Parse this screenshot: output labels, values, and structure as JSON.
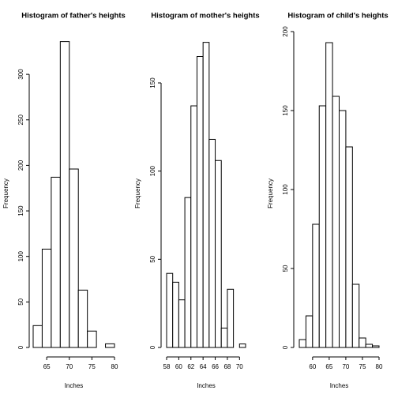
{
  "chart_data": [
    {
      "type": "histogram",
      "title": "Histogram of father's heights",
      "x_label": "Inches",
      "y_label": "Frequency",
      "bins": [
        62,
        64,
        66,
        68,
        70,
        72,
        74,
        76,
        78,
        80
      ],
      "values": [
        24,
        108,
        187,
        336,
        196,
        63,
        18,
        0,
        4
      ],
      "xlim": [
        62,
        80
      ],
      "xticks": [
        65,
        70,
        75,
        80
      ],
      "ylim": [
        0,
        340
      ],
      "yticks": [
        0,
        50,
        100,
        150,
        200,
        250,
        300
      ],
      "color": "#ffffff"
    },
    {
      "type": "histogram",
      "title": "Histogram of mother's heights",
      "x_label": "Inches",
      "y_label": "Frequency",
      "bins": [
        58,
        59,
        60,
        61,
        62,
        63,
        64,
        65,
        66,
        67,
        68,
        69,
        70,
        71
      ],
      "values": [
        42,
        37,
        27,
        85,
        137,
        165,
        173,
        118,
        106,
        11,
        33,
        0,
        2
      ],
      "xlim": [
        58,
        71
      ],
      "xticks": [
        58,
        60,
        62,
        64,
        66,
        68,
        70
      ],
      "ylim": [
        0,
        180
      ],
      "yticks": [
        0,
        50,
        100,
        150
      ],
      "color": "#ffffff"
    },
    {
      "type": "histogram",
      "title": "Histogram of child's heights",
      "x_label": "Inches",
      "y_label": "Frequency",
      "bins": [
        56,
        58,
        60,
        62,
        64,
        66,
        68,
        70,
        72,
        74,
        76,
        78,
        80
      ],
      "values": [
        5,
        20,
        78,
        153,
        193,
        159,
        150,
        127,
        40,
        6,
        2,
        1
      ],
      "xlim": [
        56,
        80
      ],
      "xticks": [
        60,
        65,
        70,
        75,
        80
      ],
      "ylim": [
        0,
        200
      ],
      "yticks": [
        0,
        50,
        100,
        150,
        200
      ],
      "color": "#ffffff"
    }
  ]
}
